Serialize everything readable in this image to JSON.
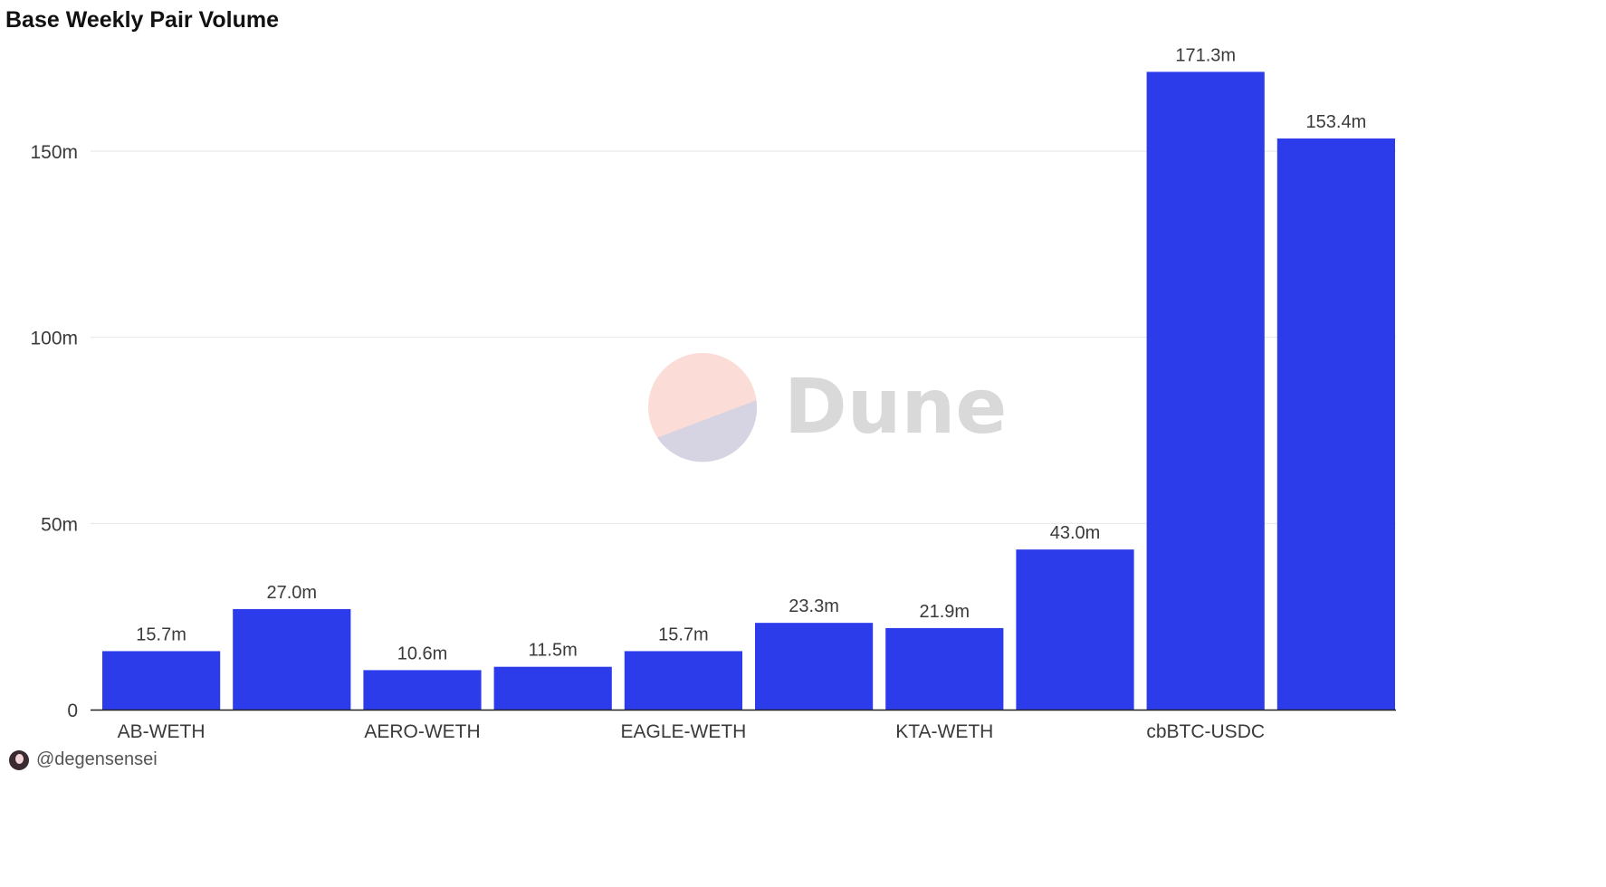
{
  "title": "Base Weekly Pair Volume",
  "footer": {
    "handle": "@degensensei",
    "avatar_icon": "user-avatar-icon"
  },
  "watermark": {
    "text": "Dune"
  },
  "colors": {
    "bar": "#2c3ceb",
    "grid": "#e6e6e6",
    "axis": "#222222"
  },
  "chart_data": {
    "type": "bar",
    "title": "Base Weekly Pair Volume",
    "xlabel": "",
    "ylabel": "",
    "ylim": [
      0,
      180
    ],
    "grid": true,
    "y_ticks": [
      {
        "value": 0,
        "label": "0"
      },
      {
        "value": 50,
        "label": "50m"
      },
      {
        "value": 100,
        "label": "100m"
      },
      {
        "value": 150,
        "label": "150m"
      }
    ],
    "x_tick_labels": [
      "AB-WETH",
      "",
      "AERO-WETH",
      "",
      "EAGLE-WETH",
      "",
      "KTA-WETH",
      "",
      "cbBTC-USDC",
      ""
    ],
    "values": [
      15.7,
      27.0,
      10.6,
      11.5,
      15.7,
      23.3,
      21.9,
      43.0,
      171.3,
      153.4
    ],
    "value_labels": [
      "15.7m",
      "27.0m",
      "10.6m",
      "11.5m",
      "15.7m",
      "23.3m",
      "21.9m",
      "43.0m",
      "171.3m",
      "153.4m"
    ]
  }
}
